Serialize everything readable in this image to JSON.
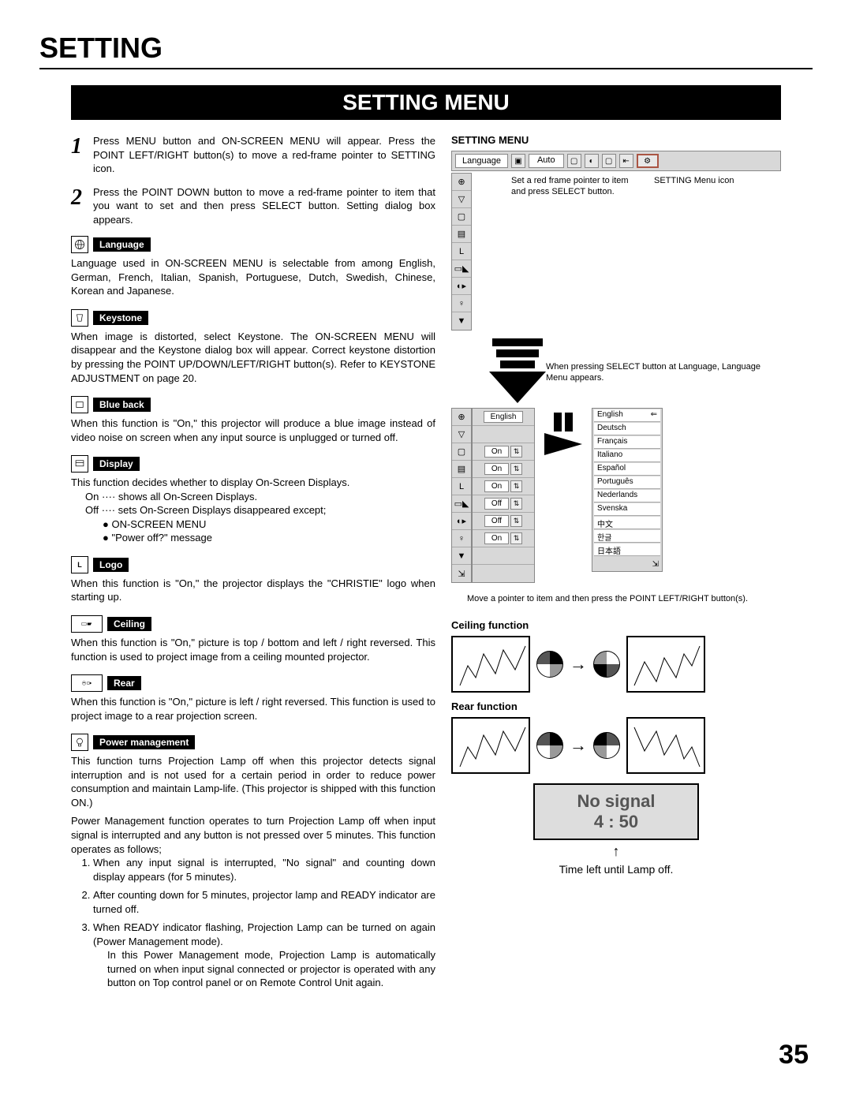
{
  "title": "SETTING",
  "banner": "SETTING MENU",
  "page_number": "35",
  "steps": {
    "s1": {
      "num": "1",
      "body": "Press MENU button and ON-SCREEN MENU will appear.  Press the POINT LEFT/RIGHT button(s) to move a red-frame pointer to  SETTING icon."
    },
    "s2": {
      "num": "2",
      "body": "Press the POINT DOWN button to move a red-frame pointer to item that you want to set and then press SELECT button. Setting dialog box appears."
    }
  },
  "sections": {
    "language": {
      "label": "Language",
      "body": "Language used in ON-SCREEN MENU is selectable from among English, German, French, Italian, Spanish, Portuguese, Dutch, Swedish, Chinese, Korean and Japanese."
    },
    "keystone": {
      "label": "Keystone",
      "body": "When image is distorted, select Keystone. The ON-SCREEN MENU will disappear and the Keystone dialog box will appear. Correct keystone distortion by pressing the POINT UP/DOWN/LEFT/RIGHT button(s). Refer to KEYSTONE ADJUSTMENT on page 20."
    },
    "blueback": {
      "label": "Blue back",
      "body": "When this function is \"On,\" this projector will produce a blue image instead of video noise on screen when any input source is unplugged or turned off."
    },
    "display": {
      "label": "Display",
      "body": "This function decides whether to display On-Screen Displays.",
      "on": "On  ···· shows all On-Screen Displays.",
      "off": "Off ···· sets On-Screen Displays disappeared except;",
      "b1": "● ON-SCREEN MENU",
      "b2": "● \"Power off?\" message"
    },
    "logo": {
      "label": "Logo",
      "body": "When this function is \"On,\" the projector displays the \"CHRISTIE\" logo when starting up."
    },
    "ceiling": {
      "label": "Ceiling",
      "body": "When this function is \"On,\" picture is top / bottom and left / right reversed.  This function is used to project image from a ceiling mounted projector."
    },
    "rear": {
      "label": "Rear",
      "body": "When this function is \"On,\" picture is left / right reversed.  This function is used to project image to a rear projection screen."
    },
    "power": {
      "label": "Power management",
      "body": "This function turns Projection Lamp off when this projector detects signal interruption and is not used for a certain period in order to reduce power consumption and maintain Lamp-life.  (This projector is shipped with this function ON.)",
      "body2": "Power Management function operates to turn Projection Lamp off when input signal is interrupted and any button is not pressed over 5 minutes. This function operates as follows;",
      "li1": "When any input signal is interrupted, \"No signal\" and counting down display appears (for 5 minutes).",
      "li2": "After counting down for 5 minutes, projector lamp and READY indicator are turned off.",
      "li3": "When READY indicator flashing, Projection Lamp can be turned on again (Power Management mode).",
      "li3b": "In this Power Management mode, Projection Lamp is automatically turned on when input signal connected or projector is operated with any button on Top control panel or on Remote Control Unit again."
    }
  },
  "right": {
    "title": "SETTING MENU",
    "menubar": {
      "label": "Language",
      "auto": "Auto"
    },
    "hint1": "Set a red frame pointer to item and press SELECT button.",
    "hint2": "SETTING Menu icon",
    "hint3": "When pressing SELECT button at Language, Language Menu appears.",
    "options": {
      "english": "English",
      "on1": "On",
      "on2": "On",
      "on3": "On",
      "off1": "Off",
      "off2": "Off",
      "on4": "On"
    },
    "languages": [
      "English",
      "Deutsch",
      "Français",
      "Italiano",
      "Español",
      "Português",
      "Nederlands",
      "Svenska",
      "中文",
      "한글",
      "日本語"
    ],
    "move_hint": "Move a pointer to item and then press the POINT LEFT/RIGHT button(s).",
    "ceiling_title": "Ceiling function",
    "rear_title": "Rear function",
    "nosignal": {
      "t": "No signal",
      "n": "4 : 50"
    },
    "nosignal_caption": "Time left until Lamp off."
  }
}
